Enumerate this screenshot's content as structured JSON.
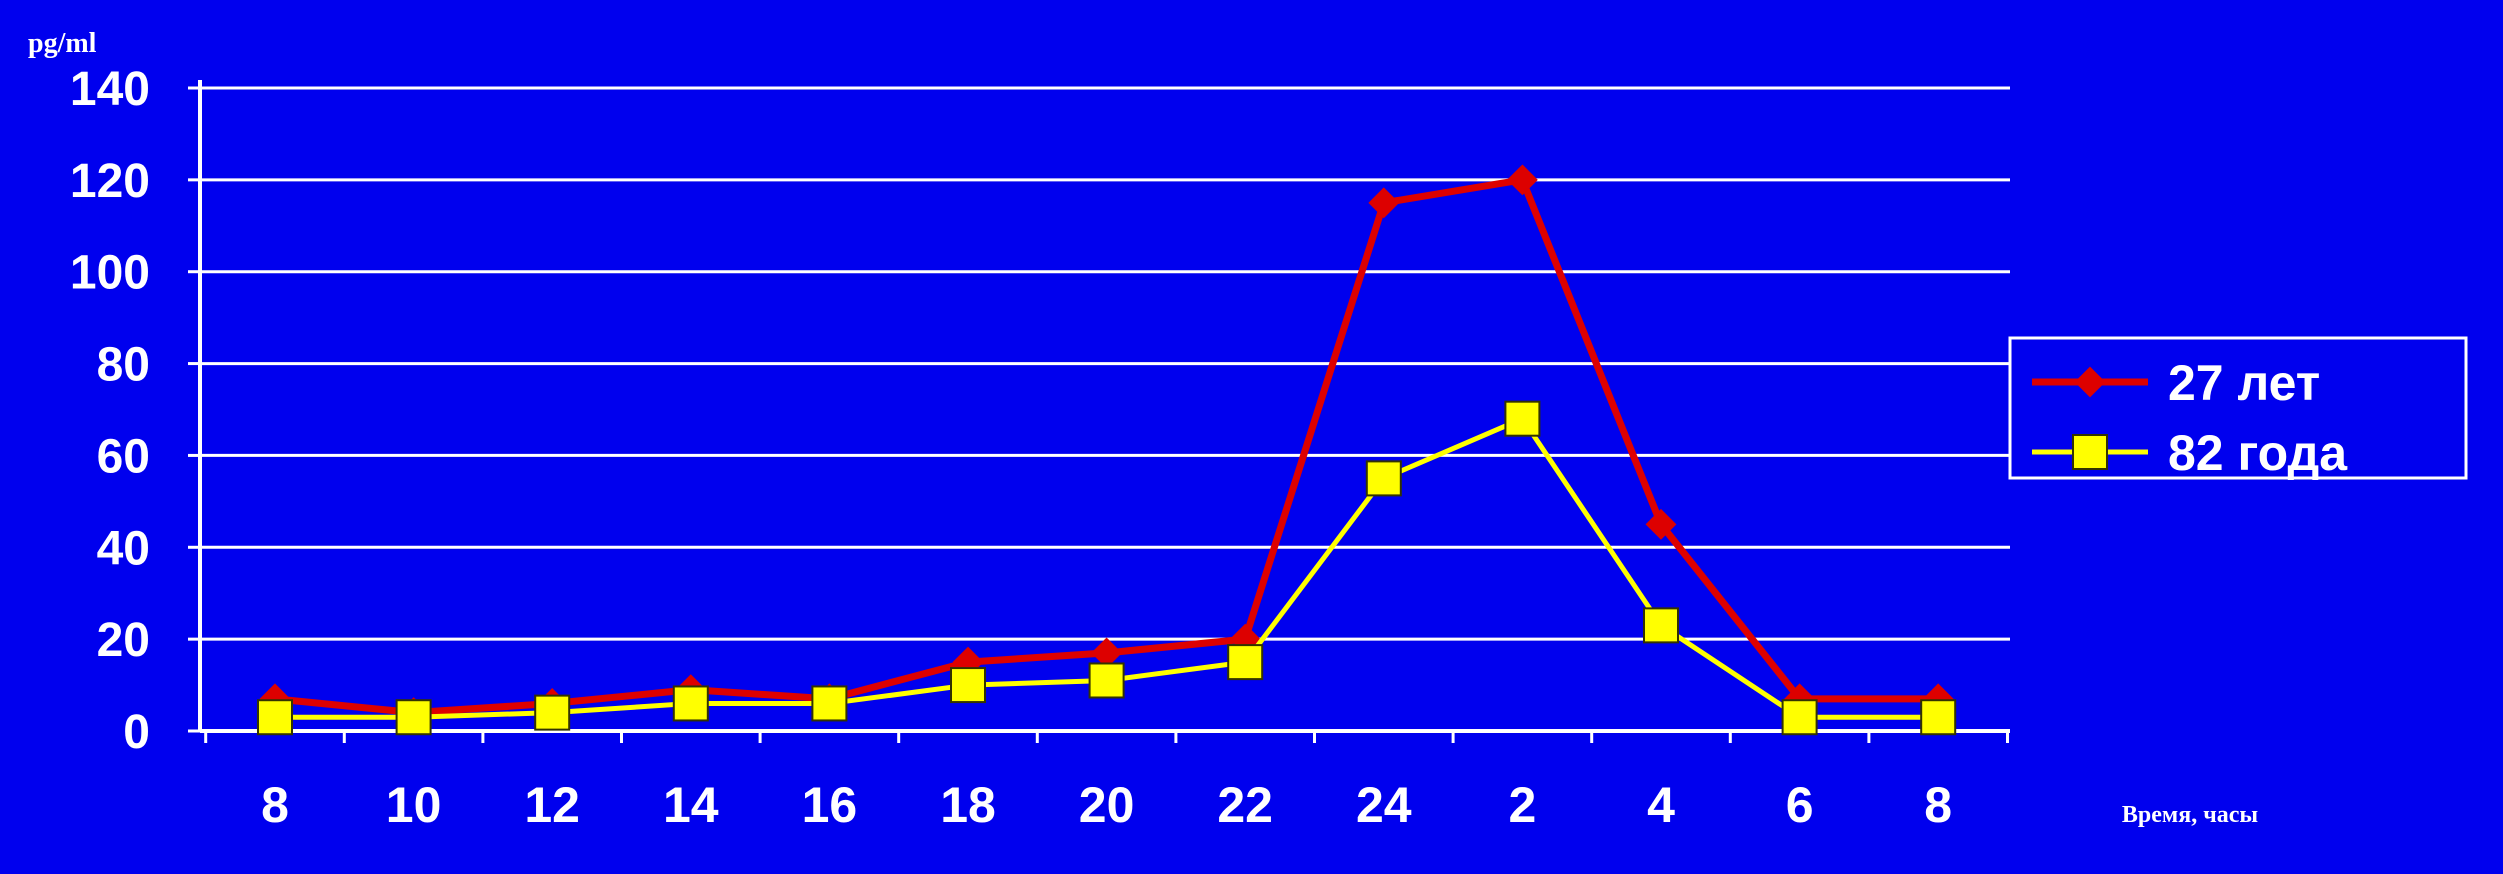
{
  "chart_data": {
    "type": "line",
    "title": "",
    "ylabel": "pg/ml",
    "xlabel": "Время, часы",
    "categories": [
      "8",
      "10",
      "12",
      "14",
      "16",
      "18",
      "20",
      "22",
      "24",
      "2",
      "4",
      "6",
      "8"
    ],
    "yticks": [
      "0",
      "20",
      "40",
      "60",
      "80",
      "100",
      "120",
      "140"
    ],
    "ylim": [
      0,
      140
    ],
    "grid": true,
    "legend_position": "right",
    "series": [
      {
        "name": "27 лет",
        "color": "#dd0000",
        "marker": "diamond",
        "values": [
          7,
          4,
          6,
          9,
          7,
          15,
          17,
          20,
          115,
          120,
          45,
          7,
          7
        ]
      },
      {
        "name": "82 года",
        "color": "#ffff00",
        "marker": "square",
        "values": [
          3,
          3,
          4,
          6,
          6,
          10,
          11,
          15,
          55,
          68,
          23,
          3,
          3
        ]
      }
    ],
    "colors": {
      "background": "#0000ee",
      "text": "#ffffff",
      "grid": "#ffffff"
    }
  }
}
